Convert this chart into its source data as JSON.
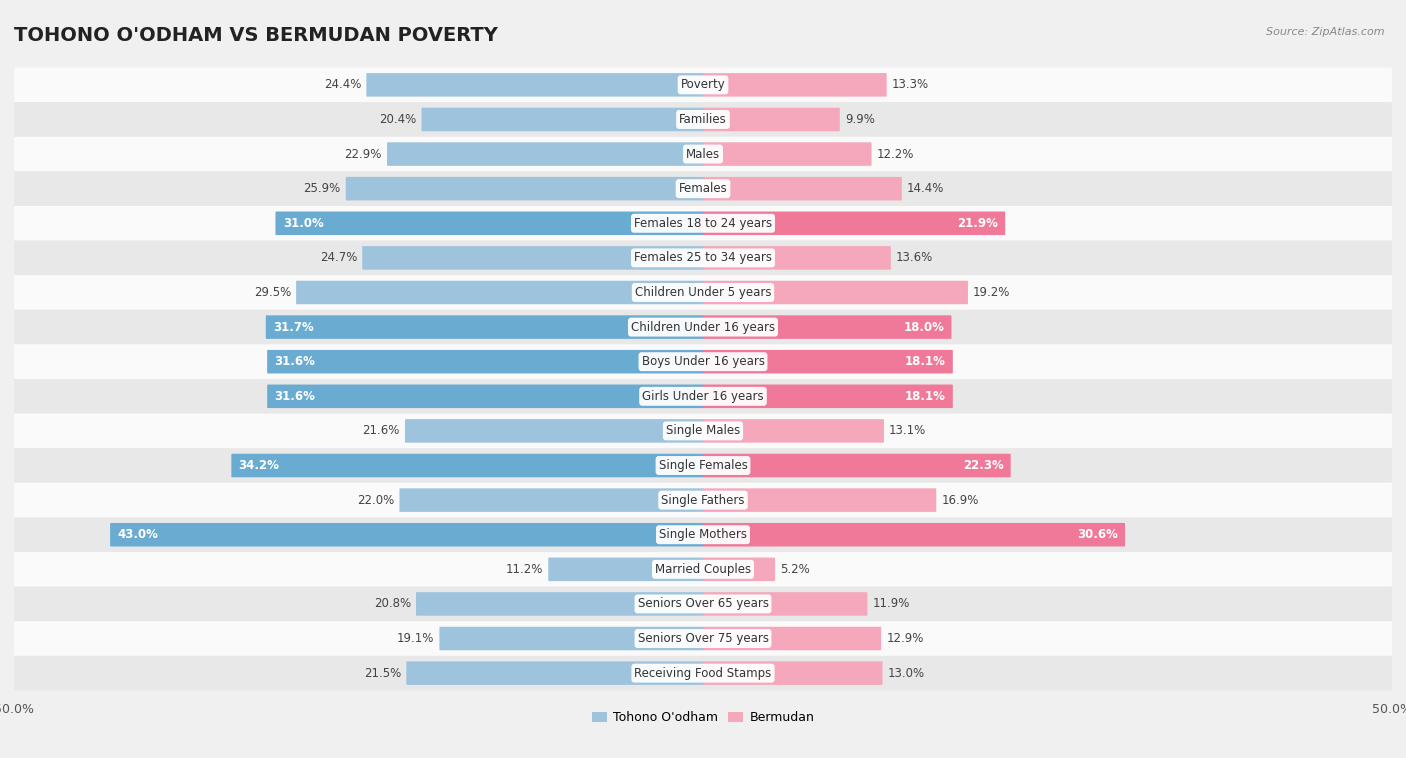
{
  "title": "TOHONO O'ODHAM VS BERMUDAN POVERTY",
  "source": "Source: ZipAtlas.com",
  "categories": [
    "Poverty",
    "Families",
    "Males",
    "Females",
    "Females 18 to 24 years",
    "Females 25 to 34 years",
    "Children Under 5 years",
    "Children Under 16 years",
    "Boys Under 16 years",
    "Girls Under 16 years",
    "Single Males",
    "Single Females",
    "Single Fathers",
    "Single Mothers",
    "Married Couples",
    "Seniors Over 65 years",
    "Seniors Over 75 years",
    "Receiving Food Stamps"
  ],
  "left_values": [
    24.4,
    20.4,
    22.9,
    25.9,
    31.0,
    24.7,
    29.5,
    31.7,
    31.6,
    31.6,
    21.6,
    34.2,
    22.0,
    43.0,
    11.2,
    20.8,
    19.1,
    21.5
  ],
  "right_values": [
    13.3,
    9.9,
    12.2,
    14.4,
    21.9,
    13.6,
    19.2,
    18.0,
    18.1,
    18.1,
    13.1,
    22.3,
    16.9,
    30.6,
    5.2,
    11.9,
    12.9,
    13.0
  ],
  "left_color_normal": "#9dc3dd",
  "right_color_normal": "#f5a8bb",
  "left_color_highlight": "#6aabd2",
  "right_color_highlight": "#f07898",
  "highlight_rows": [
    4,
    7,
    8,
    9,
    11,
    13
  ],
  "background_color": "#f0f0f0",
  "row_bg_light": "#fafafa",
  "row_bg_dark": "#e8e8e8",
  "axis_limit": 50.0,
  "left_label": "Tohono O'odham",
  "right_label": "Bermudan",
  "title_fontsize": 14,
  "category_fontsize": 8.5,
  "value_fontsize": 8.5,
  "legend_fontsize": 9
}
